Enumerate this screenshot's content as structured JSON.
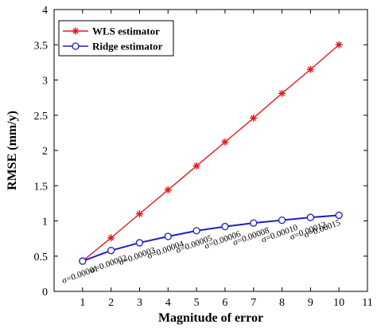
{
  "chart_data": {
    "type": "line",
    "xlabel": "Magnitude of error",
    "ylabel": "RMSE (mm/y)",
    "xlim": [
      0,
      11
    ],
    "ylim": [
      0,
      4
    ],
    "xticks": [
      1,
      2,
      3,
      4,
      5,
      6,
      7,
      8,
      9,
      10,
      11
    ],
    "yticks": [
      0,
      0.5,
      1,
      1.5,
      2,
      2.5,
      3,
      3.5,
      4
    ],
    "ytick_labels": [
      "0",
      "0.5",
      "1",
      "1.5",
      "2",
      "2.5",
      "3",
      "3.5",
      "4"
    ],
    "legend_position": "top-left",
    "grid": false,
    "series": [
      {
        "name": "WLS estimator",
        "color": "#e41a1c",
        "marker": "asterisk",
        "x": [
          1,
          2,
          3,
          4,
          5,
          6,
          7,
          8,
          9,
          10
        ],
        "values": [
          0.43,
          0.76,
          1.1,
          1.44,
          1.78,
          2.12,
          2.46,
          2.81,
          3.15,
          3.5
        ]
      },
      {
        "name": "Ridge estimator",
        "color": "#1f1fbf",
        "marker": "circle",
        "x": [
          1,
          2,
          3,
          4,
          5,
          6,
          7,
          8,
          9,
          10
        ],
        "values": [
          0.43,
          0.58,
          0.69,
          0.78,
          0.86,
          0.92,
          0.97,
          1.01,
          1.05,
          1.08
        ]
      }
    ],
    "annotations": [
      {
        "text": "σ=0.00001",
        "x": 1,
        "y": 0.43
      },
      {
        "text": "σ=0.00002",
        "x": 2,
        "y": 0.58
      },
      {
        "text": "σ=0.00003",
        "x": 3,
        "y": 0.69
      },
      {
        "text": "σ=0.00004",
        "x": 4,
        "y": 0.78
      },
      {
        "text": "σ=0.00005",
        "x": 5,
        "y": 0.86
      },
      {
        "text": "σ=0.00006",
        "x": 6,
        "y": 0.92
      },
      {
        "text": "σ=0.00008",
        "x": 7,
        "y": 0.97
      },
      {
        "text": "σ=0.00010",
        "x": 8,
        "y": 1.01
      },
      {
        "text": "σ=0.00012",
        "x": 9,
        "y": 1.05
      },
      {
        "text": "σ=0.00015",
        "x": 10,
        "y": 1.08
      }
    ]
  }
}
